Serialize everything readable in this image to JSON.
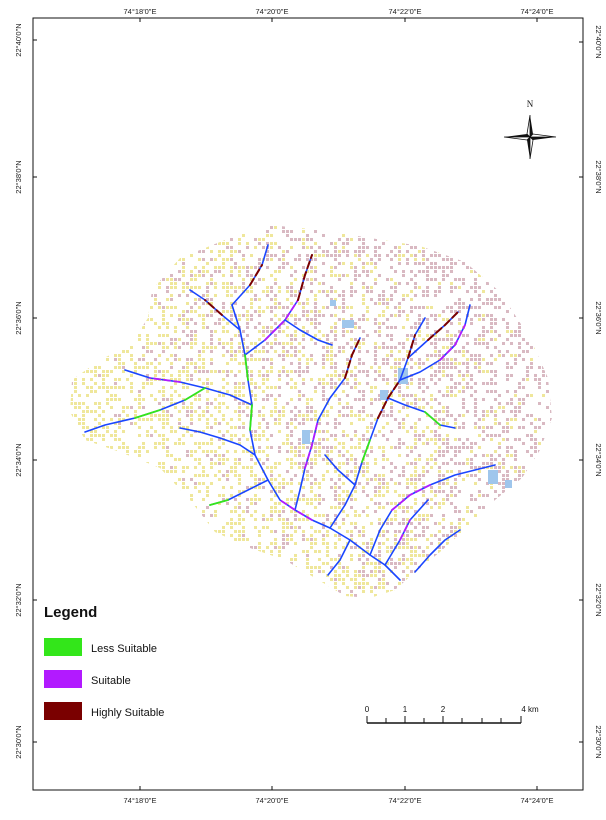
{
  "map": {
    "graticule": {
      "top_labels": [
        "74°18'0\"E",
        "74°20'0\"E",
        "74°22'0\"E",
        "74°24'0\"E"
      ],
      "bottom_labels": [
        "74°18'0\"E",
        "74°20'0\"E",
        "74°22'0\"E",
        "74°24'0\"E"
      ],
      "left_labels": [
        "22°40'0\"N",
        "22°38'0\"N",
        "22°36'0\"N",
        "22°34'0\"N",
        "22°32'0\"N",
        "22°30'0\"N"
      ],
      "right_labels": [
        "22°40'0\"N",
        "22°38'0\"N",
        "22°36'0\"N",
        "22°34'0\"N",
        "22°32'0\"N",
        "22°30'0\"N"
      ]
    },
    "north_arrow": {
      "label": "N",
      "icon": "compass-rose-icon"
    },
    "legend": {
      "title": "Legend",
      "items": [
        {
          "label": "Less Suitable",
          "color": "#33e61a"
        },
        {
          "label": "Suitable",
          "color": "#b21aff"
        },
        {
          "label": "Highly Suitable",
          "color": "#7a0000"
        }
      ]
    },
    "scale_bar": {
      "labels": [
        "0",
        "1",
        "2",
        "4 km"
      ],
      "values_km": [
        0,
        1,
        2,
        4
      ]
    },
    "colors": {
      "stream_blue": "#1a46ff",
      "pixel_yellow": "#efe79b",
      "pixel_pink": "#d9b9c2",
      "water_body": "#9fc6ec"
    }
  }
}
